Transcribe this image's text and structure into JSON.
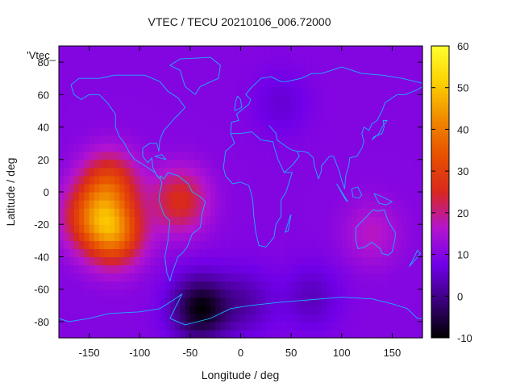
{
  "chart_data": {
    "type": "heatmap",
    "title": "VTEC / TECU 20210106_006.72000",
    "xlabel": "Longitude / deg",
    "ylabel": "Latitude / deg",
    "series_label": "'Vtec_",
    "xlim": [
      -180,
      180
    ],
    "ylim": [
      -90,
      90
    ],
    "xticks": [
      -150,
      -100,
      -50,
      0,
      50,
      100,
      150
    ],
    "yticks": [
      -80,
      -60,
      -40,
      -20,
      0,
      20,
      40,
      60,
      80
    ],
    "colorbar": {
      "range": [
        -10,
        60
      ],
      "ticks": [
        -10,
        0,
        10,
        20,
        30,
        40,
        50,
        60
      ],
      "palette": [
        "#000000",
        "#3a007a",
        "#7000e8",
        "#b414d0",
        "#d8281e",
        "#e85000",
        "#f08a00",
        "#fdd000",
        "#ffff30"
      ]
    },
    "field": {
      "background": 10,
      "features": [
        {
          "lon": -130,
          "lat": 5,
          "peak": 30
        },
        {
          "lon": -150,
          "lat": -15,
          "peak": 28
        },
        {
          "lon": -125,
          "lat": -25,
          "peak": 38
        },
        {
          "lon": -60,
          "lat": -5,
          "peak": 26
        },
        {
          "lon": -40,
          "lat": -72,
          "peak": -9
        },
        {
          "lon": 5,
          "lat": -68,
          "peak": 3
        },
        {
          "lon": 70,
          "lat": -65,
          "peak": 4
        },
        {
          "lon": 40,
          "lat": 55,
          "peak": 6
        },
        {
          "lon": 130,
          "lat": -25,
          "peak": 17
        }
      ]
    }
  }
}
